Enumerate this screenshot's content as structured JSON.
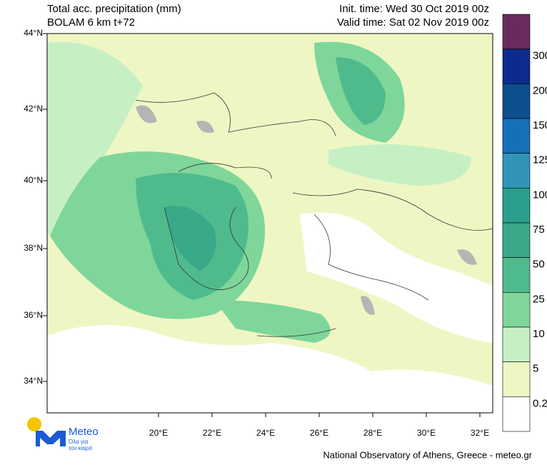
{
  "header": {
    "title": [
      "Total acc. precipitation (mm)",
      "BOLAM 6 km t+72"
    ],
    "times": [
      "Init. time: Wed 30 Oct 2019 00z",
      "Valid time: Sat 02 Nov 2019 00z"
    ]
  },
  "map": {
    "lat_labels": [
      "44°N",
      "42°N",
      "40°N",
      "38°N",
      "36°N",
      "34°N"
    ],
    "lon_labels": [
      "20°E",
      "22°E",
      "24°E",
      "26°E",
      "28°E",
      "30°E",
      "32°E"
    ]
  },
  "colorbar": {
    "labels": [
      "300",
      "200",
      "150",
      "125",
      "100",
      "75",
      "50",
      "25",
      "10",
      "5",
      "0.2"
    ],
    "colors": [
      "#6b2a5e",
      "#0c2b8e",
      "#0b4f8c",
      "#1670b8",
      "#3294b9",
      "#2a9f8d",
      "#39a98a",
      "#4fbb8d",
      "#7fd69b",
      "#c6f0c4",
      "#eef7c4",
      "#ffffff"
    ]
  },
  "logo": {
    "name": "Meteo",
    "tagline": [
      "Όλα για",
      "τον καιρό"
    ]
  },
  "footer": "National Observatory of Athens, Greece - meteo.gr"
}
